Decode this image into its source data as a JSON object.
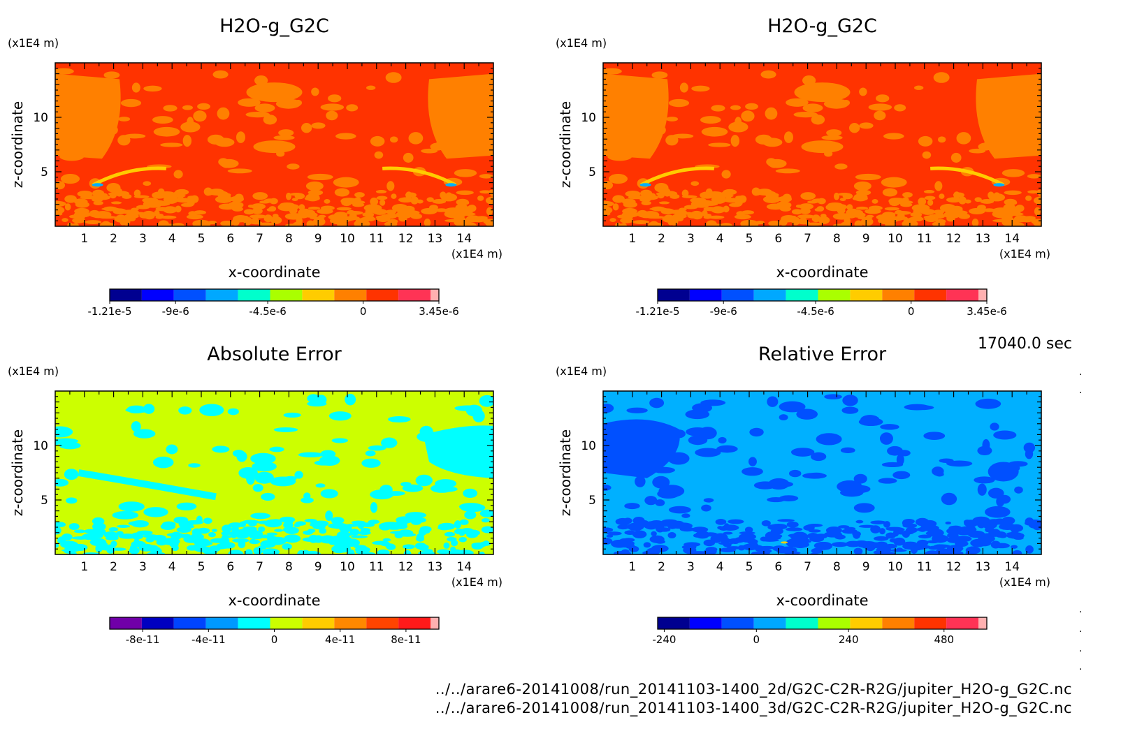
{
  "timestamp": "17040.0 sec",
  "file_paths": [
    "../../arare6-20141008/run_20141103-1400_2d/G2C-C2R-R2G/jupiter_H2O-g_G2C.nc",
    "../../arare6-20141008/run_20141103-1400_3d/G2C-C2R-R2G/jupiter_H2O-g_G2C.nc"
  ],
  "chart_data": [
    {
      "type": "heatmap",
      "title": "H2O-g_G2C",
      "xlabel": "x-coordinate",
      "ylabel": "z-coordinate",
      "x_unit": "(x1E4 m)",
      "y_unit": "(x1E4 m)",
      "xlim": [
        0,
        15
      ],
      "ylim": [
        0,
        15
      ],
      "x_ticks": [
        "1",
        "2",
        "3",
        "4",
        "5",
        "6",
        "7",
        "8",
        "9",
        "10",
        "11",
        "12",
        "13",
        "14"
      ],
      "y_ticks": [
        "5",
        "10"
      ],
      "dominant_color": "#ff3300",
      "secondary_color": "#ff8000",
      "colorbar": {
        "labels": [
          "-1.21e-5",
          "-9e-6",
          "-4.5e-6",
          "0",
          "3.45e-6"
        ],
        "colors": [
          "#000090",
          "#0000ff",
          "#0050ff",
          "#00a8ff",
          "#00ffcc",
          "#aaff00",
          "#ffcc00",
          "#ff8000",
          "#ff3300",
          "#ff3355",
          "#ffb0b0"
        ]
      }
    },
    {
      "type": "heatmap",
      "title": "H2O-g_G2C",
      "xlabel": "x-coordinate",
      "ylabel": "z-coordinate",
      "x_unit": "(x1E4 m)",
      "y_unit": "(x1E4 m)",
      "xlim": [
        0,
        15
      ],
      "ylim": [
        0,
        15
      ],
      "x_ticks": [
        "1",
        "2",
        "3",
        "4",
        "5",
        "6",
        "7",
        "8",
        "9",
        "10",
        "11",
        "12",
        "13",
        "14"
      ],
      "y_ticks": [
        "5",
        "10"
      ],
      "dominant_color": "#ff3300",
      "secondary_color": "#ff8000",
      "colorbar": {
        "labels": [
          "-1.21e-5",
          "-9e-6",
          "-4.5e-6",
          "0",
          "3.45e-6"
        ],
        "colors": [
          "#000090",
          "#0000ff",
          "#0050ff",
          "#00a8ff",
          "#00ffcc",
          "#aaff00",
          "#ffcc00",
          "#ff8000",
          "#ff3300",
          "#ff3355",
          "#ffb0b0"
        ]
      }
    },
    {
      "type": "heatmap",
      "title": "Absolute Error",
      "xlabel": "x-coordinate",
      "ylabel": "z-coordinate",
      "x_unit": "(x1E4 m)",
      "y_unit": "(x1E4 m)",
      "xlim": [
        0,
        15
      ],
      "ylim": [
        0,
        15
      ],
      "x_ticks": [
        "1",
        "2",
        "3",
        "4",
        "5",
        "6",
        "7",
        "8",
        "9",
        "10",
        "11",
        "12",
        "13",
        "14"
      ],
      "y_ticks": [
        "5",
        "10"
      ],
      "dominant_color": "#ccff00",
      "secondary_color": "#00ffff",
      "colorbar": {
        "labels": [
          "-8e-11",
          "-4e-11",
          "0",
          "4e-11",
          "8e-11"
        ],
        "colors": [
          "#7000a8",
          "#0000c0",
          "#0044ff",
          "#0099ff",
          "#00ffff",
          "#ccff00",
          "#ffcc00",
          "#ff8800",
          "#ff4400",
          "#ff1a1a",
          "#ffb0b0"
        ]
      }
    },
    {
      "type": "heatmap",
      "title": "Relative Error",
      "xlabel": "x-coordinate",
      "ylabel": "z-coordinate",
      "x_unit": "(x1E4 m)",
      "y_unit": "(x1E4 m)",
      "xlim": [
        0,
        15
      ],
      "ylim": [
        0,
        15
      ],
      "x_ticks": [
        "1",
        "2",
        "3",
        "4",
        "5",
        "6",
        "7",
        "8",
        "9",
        "10",
        "11",
        "12",
        "13",
        "14"
      ],
      "y_ticks": [
        "5",
        "10"
      ],
      "dominant_color": "#00b0ff",
      "secondary_color": "#0050ff",
      "colorbar": {
        "labels": [
          "-240",
          "0",
          "240",
          "480"
        ],
        "colors": [
          "#000090",
          "#0000ff",
          "#0050ff",
          "#00a8ff",
          "#00ffcc",
          "#aaff00",
          "#ffcc00",
          "#ff8000",
          "#ff3300",
          "#ff3355",
          "#ffb0b0"
        ]
      }
    }
  ]
}
